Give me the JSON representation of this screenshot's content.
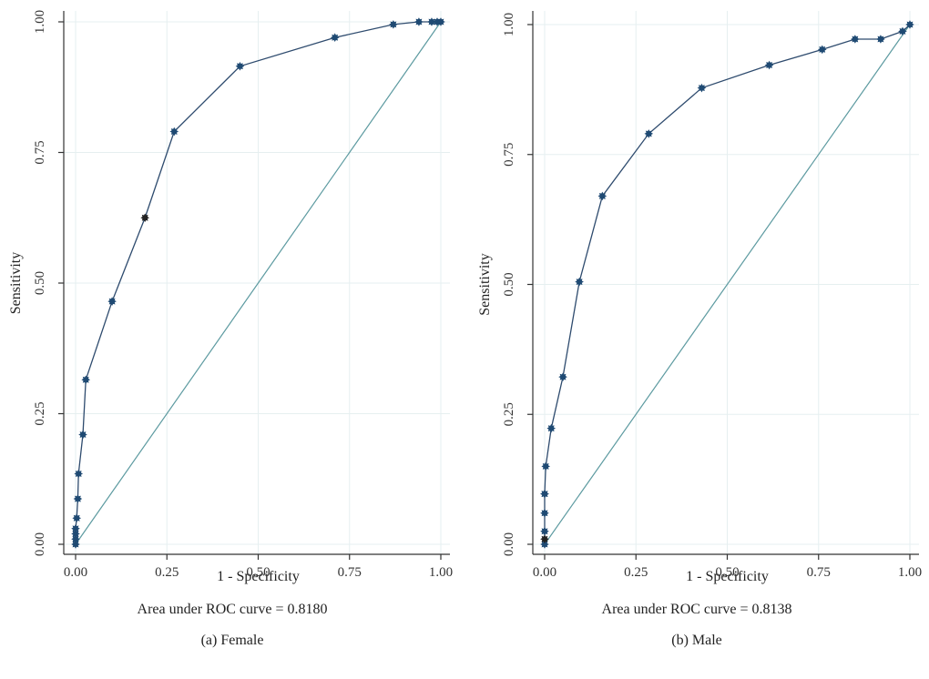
{
  "colors": {
    "roc_line": "#2e4b6e",
    "marker": "#1f4a73",
    "marker_dark": "#222222",
    "reference_line": "#5c9aa0",
    "grid": "#e6eff0",
    "axis": "#333333"
  },
  "chart_data": [
    {
      "type": "line",
      "xlabel": "1 - Specificity",
      "ylabel": "Sensitivity",
      "xlim": [
        0,
        1
      ],
      "ylim": [
        0,
        1
      ],
      "grid": true,
      "xticks": [
        "0.00",
        "0.25",
        "0.50",
        "0.75",
        "1.00"
      ],
      "yticks": [
        "0.00",
        "0.25",
        "0.50",
        "0.75",
        "1.00"
      ],
      "auc_text": "Area under ROC curve = 0.8180",
      "caption": "(a)  Female",
      "series": [
        {
          "x": [
            0.0,
            0.0,
            0.0,
            0.0,
            0.003,
            0.006,
            0.008,
            0.02,
            0.028,
            0.1,
            0.19,
            0.27,
            0.45,
            0.71,
            0.87,
            0.94,
            0.975,
            0.99,
            1.0
          ],
          "y": [
            0.0,
            0.01,
            0.02,
            0.03,
            0.05,
            0.087,
            0.135,
            0.21,
            0.315,
            0.465,
            0.625,
            0.79,
            0.915,
            0.97,
            0.995,
            1.0,
            1.0,
            1.0,
            1.0
          ],
          "dark_points": [
            10
          ]
        }
      ],
      "reference_line": [
        [
          0,
          0
        ],
        [
          1,
          1
        ]
      ]
    },
    {
      "type": "line",
      "xlabel": "1 - Specificity",
      "ylabel": "Sensitivity",
      "xlim": [
        0,
        1
      ],
      "ylim": [
        0,
        1
      ],
      "grid": true,
      "xticks": [
        "0.00",
        "0.25",
        "0.50",
        "0.75",
        "1.00"
      ],
      "yticks": [
        "0.00",
        "0.25",
        "0.50",
        "0.75",
        "1.00"
      ],
      "auc_text": "Area under ROC curve = 0.8138",
      "caption": "(b)  Male",
      "series": [
        {
          "x": [
            0.0,
            0.0,
            0.0,
            0.0,
            0.0,
            0.0,
            0.003,
            0.018,
            0.05,
            0.095,
            0.158,
            0.285,
            0.43,
            0.615,
            0.76,
            0.85,
            0.92,
            0.98,
            1.0
          ],
          "y": [
            0.0,
            0.01,
            0.025,
            0.06,
            0.097,
            0.097,
            0.15,
            0.223,
            0.322,
            0.505,
            0.67,
            0.79,
            0.878,
            0.922,
            0.952,
            0.972,
            0.972,
            0.987,
            1.0
          ],
          "dark_points": [
            1
          ]
        }
      ],
      "reference_line": [
        [
          0,
          0
        ],
        [
          1,
          1
        ]
      ]
    }
  ]
}
